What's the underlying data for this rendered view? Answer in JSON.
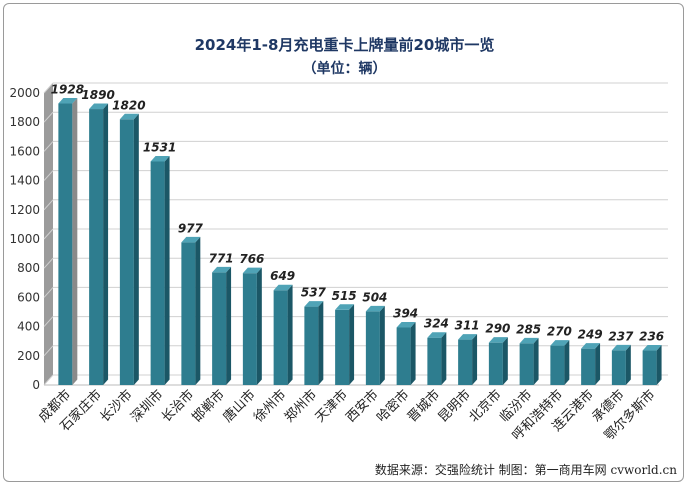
{
  "title": "2024年1-8月充电重卡上牌量前20城市一览",
  "subtitle": "（单位：辆）",
  "source": "数据来源：交强险统计    制图：第一商用车网 cvworld.cn",
  "colors": {
    "bar_front": "#2e7d8f",
    "bar_side": "#1b5766",
    "bar_top": "#4fa3b6",
    "first_bar_side": "#8a8a8a",
    "title": "#1f3864",
    "grid": "#d0d0d0"
  },
  "chart_data": {
    "type": "bar",
    "categories": [
      "成都市",
      "石家庄市",
      "长沙市",
      "深圳市",
      "长治市",
      "邯郸市",
      "唐山市",
      "徐州市",
      "郑州市",
      "天津市",
      "西安市",
      "哈密市",
      "晋城市",
      "昆明市",
      "北京市",
      "临汾市",
      "呼和浩特市",
      "连云港市",
      "承德市",
      "鄂尔多斯市"
    ],
    "values": [
      1928,
      1890,
      1820,
      1531,
      977,
      771,
      766,
      649,
      537,
      515,
      504,
      394,
      324,
      311,
      290,
      285,
      270,
      249,
      237,
      236
    ],
    "yticks": [
      0,
      200,
      400,
      600,
      800,
      1000,
      1200,
      1400,
      1600,
      1800,
      2000
    ],
    "ylim": [
      0,
      2000
    ],
    "grid": true,
    "data_labels": true
  }
}
